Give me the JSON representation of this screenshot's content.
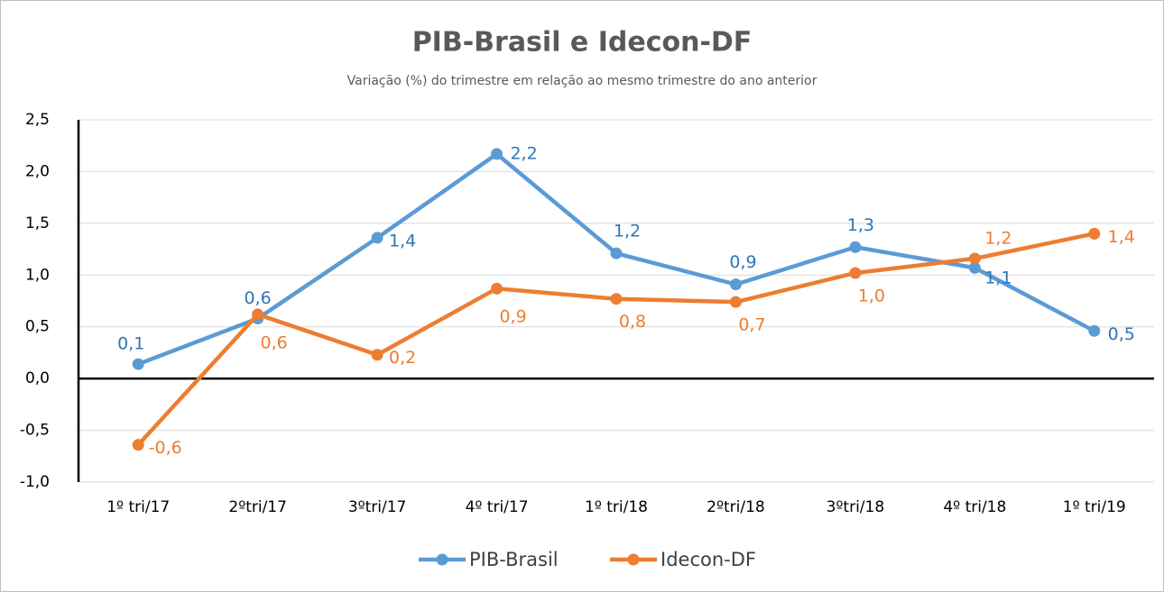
{
  "chart_data": {
    "type": "line",
    "title": "PIB-Brasil e Idecon-DF",
    "subtitle": "Variação (%) do trimestre em relação ao mesmo trimestre do ano anterior",
    "categories": [
      "1º tri/17",
      "2ºtri/17",
      "3ºtri/17",
      "4º tri/17",
      "1º tri/18",
      "2ºtri/18",
      "3ºtri/18",
      "4º tri/18",
      "1º tri/19"
    ],
    "series": [
      {
        "name": "PIB-Brasil",
        "color": "#5b9bd5",
        "values": [
          0.14,
          0.58,
          1.36,
          2.17,
          1.21,
          0.91,
          1.27,
          1.07,
          0.46
        ],
        "value_labels": [
          "0,1",
          "0,6",
          "1,4",
          "2,2",
          "1,2",
          "0,9",
          "1,3",
          "1,1",
          "0,5"
        ]
      },
      {
        "name": "Idecon-DF",
        "color": "#ed7d31",
        "values": [
          -0.64,
          0.62,
          0.23,
          0.87,
          0.77,
          0.74,
          1.02,
          1.16,
          1.4
        ],
        "value_labels": [
          "-0,6",
          "0,6",
          "0,2",
          "0,9",
          "0,8",
          "0,7",
          "1,0",
          "1,2",
          "1,4"
        ]
      }
    ],
    "ylim": [
      -1.0,
      2.5
    ],
    "yticks": [
      {
        "value": -1.0,
        "label": "-1,0"
      },
      {
        "value": -0.5,
        "label": "-0,5"
      },
      {
        "value": 0,
        "label": "0,0"
      },
      {
        "value": 0.5,
        "label": "0,5"
      },
      {
        "value": 1.0,
        "label": "1,0"
      },
      {
        "value": 1.5,
        "label": "1,5"
      },
      {
        "value": 2.0,
        "label": "2,0"
      },
      {
        "value": 2.5,
        "label": "2,5"
      }
    ],
    "grid": true,
    "legend": "bottom"
  }
}
